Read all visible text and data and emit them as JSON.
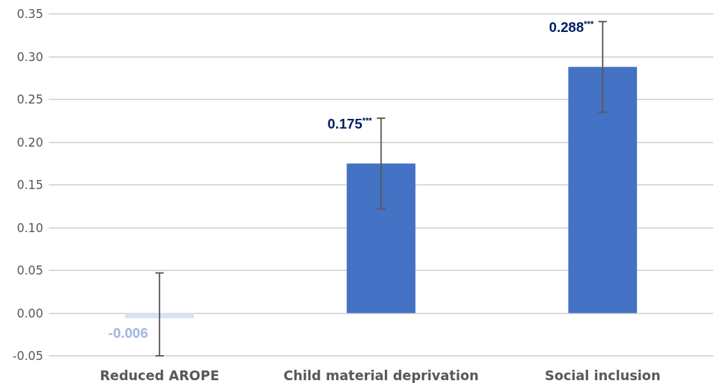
{
  "chart_data": {
    "type": "bar",
    "categories": [
      "Reduced AROPE",
      "Child material deprivation",
      "Social inclusion"
    ],
    "values": [
      -0.006,
      0.175,
      0.288
    ],
    "colors": [
      "#dae3f3",
      "#4472c4",
      "#4472c4"
    ],
    "errors": [
      [
        -0.05,
        0.047
      ],
      [
        0.122,
        0.228
      ],
      [
        0.235,
        0.341
      ]
    ],
    "value_labels": [
      "-0.006",
      "0.175$^{***}$",
      "0.288$^{***}$"
    ],
    "ylim": [
      -0.05,
      0.35
    ],
    "yticks": [
      {
        "value": -0.05,
        "label": "-0.05"
      },
      {
        "value": 0,
        "label": "0.00"
      },
      {
        "value": 0.05,
        "label": "0.05"
      },
      {
        "value": 0.1,
        "label": "0.10"
      },
      {
        "value": 0.15,
        "label": "0.15"
      },
      {
        "value": 0.2,
        "label": "0.20"
      },
      {
        "value": 0.25,
        "label": "0.25"
      },
      {
        "value": 0.3,
        "label": "0.30"
      },
      {
        "value": 0.35,
        "label": "0.35"
      }
    ],
    "grid": "y"
  }
}
